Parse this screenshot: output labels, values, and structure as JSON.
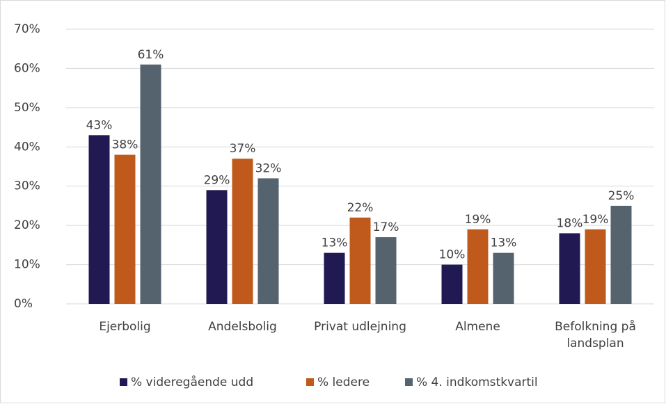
{
  "chart_data": {
    "type": "bar",
    "categories": [
      "Ejerbolig",
      "Andelsbolig",
      "Privat udlejning",
      "Almene",
      "Befolkning på landsplan"
    ],
    "series": [
      {
        "name": "% videregående udd",
        "color": "#211a52",
        "values": [
          43,
          29,
          13,
          10,
          18
        ],
        "value_labels": [
          "43%",
          "29%",
          "13%",
          "10%",
          "18%"
        ]
      },
      {
        "name": "% ledere",
        "color": "#c05a1c",
        "values": [
          38,
          37,
          22,
          19,
          19
        ],
        "value_labels": [
          "38%",
          "37%",
          "22%",
          "19%",
          "19%"
        ]
      },
      {
        "name": "% 4. indkomstkvartil",
        "color": "#55636f",
        "values": [
          61,
          32,
          17,
          13,
          25
        ],
        "value_labels": [
          "61%",
          "32%",
          "17%",
          "13%",
          "25%"
        ]
      }
    ],
    "ylim": [
      0,
      70
    ],
    "yticks": [
      {
        "value": 0,
        "label": "0%"
      },
      {
        "value": 10,
        "label": "10%"
      },
      {
        "value": 20,
        "label": "20%"
      },
      {
        "value": 30,
        "label": "30%"
      },
      {
        "value": 40,
        "label": "40%"
      },
      {
        "value": 50,
        "label": "50%"
      },
      {
        "value": 60,
        "label": "60%"
      },
      {
        "value": 70,
        "label": "70%"
      }
    ],
    "grid": true,
    "legend": "bottom"
  }
}
